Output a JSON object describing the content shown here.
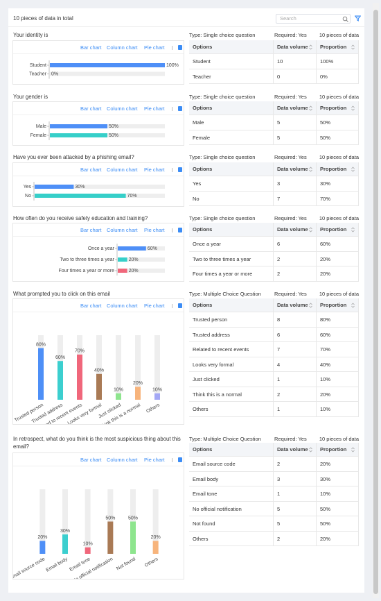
{
  "header": {
    "summary": "10 pieces of data in total",
    "search_placeholder": "Search"
  },
  "questions": [
    {
      "title": "Your identity is",
      "meta": {
        "type": "Type: Single choice question",
        "required": "Required: Yes",
        "count": "10 pieces of data"
      },
      "tabs": [
        "Bar chart",
        "Column chart",
        "Pie chart"
      ],
      "chart": {
        "type": "hbar",
        "categories": [
          "Student",
          "Teacher"
        ],
        "values": [
          100,
          0
        ],
        "value_labels": [
          "100%",
          "0%"
        ],
        "xlim": [
          0,
          100
        ],
        "colors": [
          "#4e8ff7",
          "#36cfc9"
        ]
      },
      "table": {
        "headers": [
          "Options",
          "Data volume",
          "Proportion"
        ],
        "rows": [
          [
            "Student",
            "10",
            "100%"
          ],
          [
            "Teacher",
            "0",
            "0%"
          ]
        ]
      }
    },
    {
      "title": "Your gender is",
      "meta": {
        "type": "Type: Single choice question",
        "required": "Required: Yes",
        "count": "10 pieces of data"
      },
      "tabs": [
        "Bar chart",
        "Column chart",
        "Pie chart"
      ],
      "chart": {
        "type": "hbar",
        "categories": [
          "Male",
          "Female"
        ],
        "values": [
          50,
          50
        ],
        "value_labels": [
          "50%",
          "50%"
        ],
        "xlim": [
          0,
          100
        ],
        "colors": [
          "#4e8ff7",
          "#36cfc9"
        ]
      },
      "table": {
        "headers": [
          "Options",
          "Data volume",
          "Proportion"
        ],
        "rows": [
          [
            "Male",
            "5",
            "50%"
          ],
          [
            "Female",
            "5",
            "50%"
          ]
        ]
      }
    },
    {
      "title": "Have you ever been attacked by a phishing email?",
      "meta": {
        "type": "Type: Single choice question",
        "required": "Required: Yes",
        "count": "10 pieces of data"
      },
      "tabs": [
        "Bar chart",
        "Column chart",
        "Pie chart"
      ],
      "chart": {
        "type": "hbar",
        "categories": [
          "Yes",
          "No"
        ],
        "values": [
          30,
          70
        ],
        "value_labels": [
          "30%",
          "70%"
        ],
        "xlim": [
          0,
          100
        ],
        "colors": [
          "#4e8ff7",
          "#36cfc9"
        ]
      },
      "table": {
        "headers": [
          "Options",
          "Data volume",
          "Proportion"
        ],
        "rows": [
          [
            "Yes",
            "3",
            "30%"
          ],
          [
            "No",
            "7",
            "70%"
          ]
        ]
      }
    },
    {
      "title": "How often do you receive safety education and training?",
      "meta": {
        "type": "Type: Single choice question",
        "required": "Required: Yes",
        "count": "10 pieces of data"
      },
      "tabs": [
        "Bar chart",
        "Column chart",
        "Pie chart"
      ],
      "chart": {
        "type": "hbar",
        "categories": [
          "Once a year",
          "Two to three times a year",
          "Four times a year or more"
        ],
        "values": [
          60,
          20,
          20
        ],
        "value_labels": [
          "60%",
          "20%",
          "20%"
        ],
        "xlim": [
          0,
          100
        ],
        "colors": [
          "#4e8ff7",
          "#36cfc9",
          "#f0677b"
        ]
      },
      "table": {
        "headers": [
          "Options",
          "Data volume",
          "Proportion"
        ],
        "rows": [
          [
            "Once a year",
            "6",
            "60%"
          ],
          [
            "Two to three times a year",
            "2",
            "20%"
          ],
          [
            "Four times a year or more",
            "2",
            "20%"
          ]
        ]
      }
    },
    {
      "title": "What prompted you to click on this email",
      "meta": {
        "type": "Type: Multiple Choice Question",
        "required": "Required: Yes",
        "count": "10 pieces of data"
      },
      "tabs": [
        "Bar chart",
        "Column chart",
        "Pie chart"
      ],
      "chart": {
        "type": "column",
        "categories": [
          "Trusted person",
          "Trusted address",
          "Related to recent events",
          "Looks very formal",
          "Just clicked",
          "Think this is a normal",
          "Others"
        ],
        "values": [
          80,
          60,
          70,
          40,
          10,
          20,
          10
        ],
        "value_labels": [
          "80%",
          "60%",
          "70%",
          "40%",
          "10%",
          "20%",
          "10%"
        ],
        "ylim": [
          0,
          100
        ],
        "colors": [
          "#4e8ff7",
          "#3ccfcf",
          "#f0677b",
          "#a97a55",
          "#8ee58e",
          "#f7b47c",
          "#a4a8f5"
        ]
      },
      "table": {
        "headers": [
          "Options",
          "Data volume",
          "Proportion"
        ],
        "rows": [
          [
            "Trusted person",
            "8",
            "80%"
          ],
          [
            "Trusted address",
            "6",
            "60%"
          ],
          [
            "Related to recent events",
            "7",
            "70%"
          ],
          [
            "Looks very formal",
            "4",
            "40%"
          ],
          [
            "Just clicked",
            "1",
            "10%"
          ],
          [
            "Think this is a normal",
            "2",
            "20%"
          ],
          [
            "Others",
            "1",
            "10%"
          ]
        ]
      }
    },
    {
      "title": "In retrospect, what do you think is the most suspicious thing about this email?",
      "meta": {
        "type": "Type: Multiple Choice Question",
        "required": "Required: Yes",
        "count": "10 pieces of data"
      },
      "tabs": [
        "Bar chart",
        "Column chart",
        "Pie chart"
      ],
      "chart": {
        "type": "column",
        "categories": [
          "Email source code",
          "Email body",
          "Email tone",
          "No official notification",
          "Not found",
          "Others"
        ],
        "values": [
          20,
          30,
          10,
          50,
          50,
          20
        ],
        "value_labels": [
          "20%",
          "30%",
          "10%",
          "50%",
          "50%",
          "20%"
        ],
        "ylim": [
          0,
          100
        ],
        "colors": [
          "#4e8ff7",
          "#3ccfcf",
          "#f0677b",
          "#a97a55",
          "#8ee58e",
          "#f7b47c"
        ]
      },
      "table": {
        "headers": [
          "Options",
          "Data volume",
          "Proportion"
        ],
        "rows": [
          [
            "Email source code",
            "2",
            "20%"
          ],
          [
            "Email body",
            "3",
            "30%"
          ],
          [
            "Email tone",
            "1",
            "10%"
          ],
          [
            "No official notification",
            "5",
            "50%"
          ],
          [
            "Not found",
            "5",
            "50%"
          ],
          [
            "Others",
            "2",
            "20%"
          ]
        ]
      }
    }
  ]
}
